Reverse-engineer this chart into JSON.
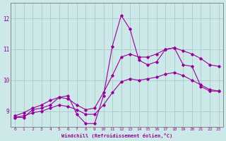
{
  "xlabel": "Windchill (Refroidissement éolien,°C)",
  "background_color": "#cce8e8",
  "line_color": "#990099",
  "xlim": [
    -0.5,
    23.5
  ],
  "ylim": [
    8.5,
    12.5
  ],
  "xticks": [
    0,
    1,
    2,
    3,
    4,
    5,
    6,
    7,
    8,
    9,
    10,
    11,
    12,
    13,
    14,
    15,
    16,
    17,
    18,
    19,
    20,
    21,
    22,
    23
  ],
  "yticks": [
    9,
    10,
    11,
    12
  ],
  "grid_color": "#aacaca",
  "series_jagged": [
    8.8,
    8.8,
    9.05,
    9.1,
    9.2,
    9.45,
    9.5,
    8.9,
    8.6,
    8.6,
    9.5,
    11.1,
    12.1,
    11.65,
    10.65,
    10.5,
    10.6,
    11.0,
    11.05,
    10.5,
    10.45,
    9.8,
    9.65,
    9.65
  ],
  "series_upper": [
    8.85,
    8.95,
    9.1,
    9.2,
    9.35,
    9.45,
    9.4,
    9.2,
    9.05,
    9.1,
    9.6,
    10.15,
    10.75,
    10.85,
    10.75,
    10.75,
    10.85,
    11.0,
    11.05,
    10.95,
    10.85,
    10.7,
    10.5,
    10.45
  ],
  "series_lower": [
    8.8,
    8.85,
    8.95,
    9.0,
    9.1,
    9.2,
    9.15,
    9.05,
    8.9,
    8.9,
    9.2,
    9.6,
    9.95,
    10.05,
    10.0,
    10.05,
    10.1,
    10.2,
    10.25,
    10.15,
    10.0,
    9.85,
    9.7,
    9.65
  ]
}
